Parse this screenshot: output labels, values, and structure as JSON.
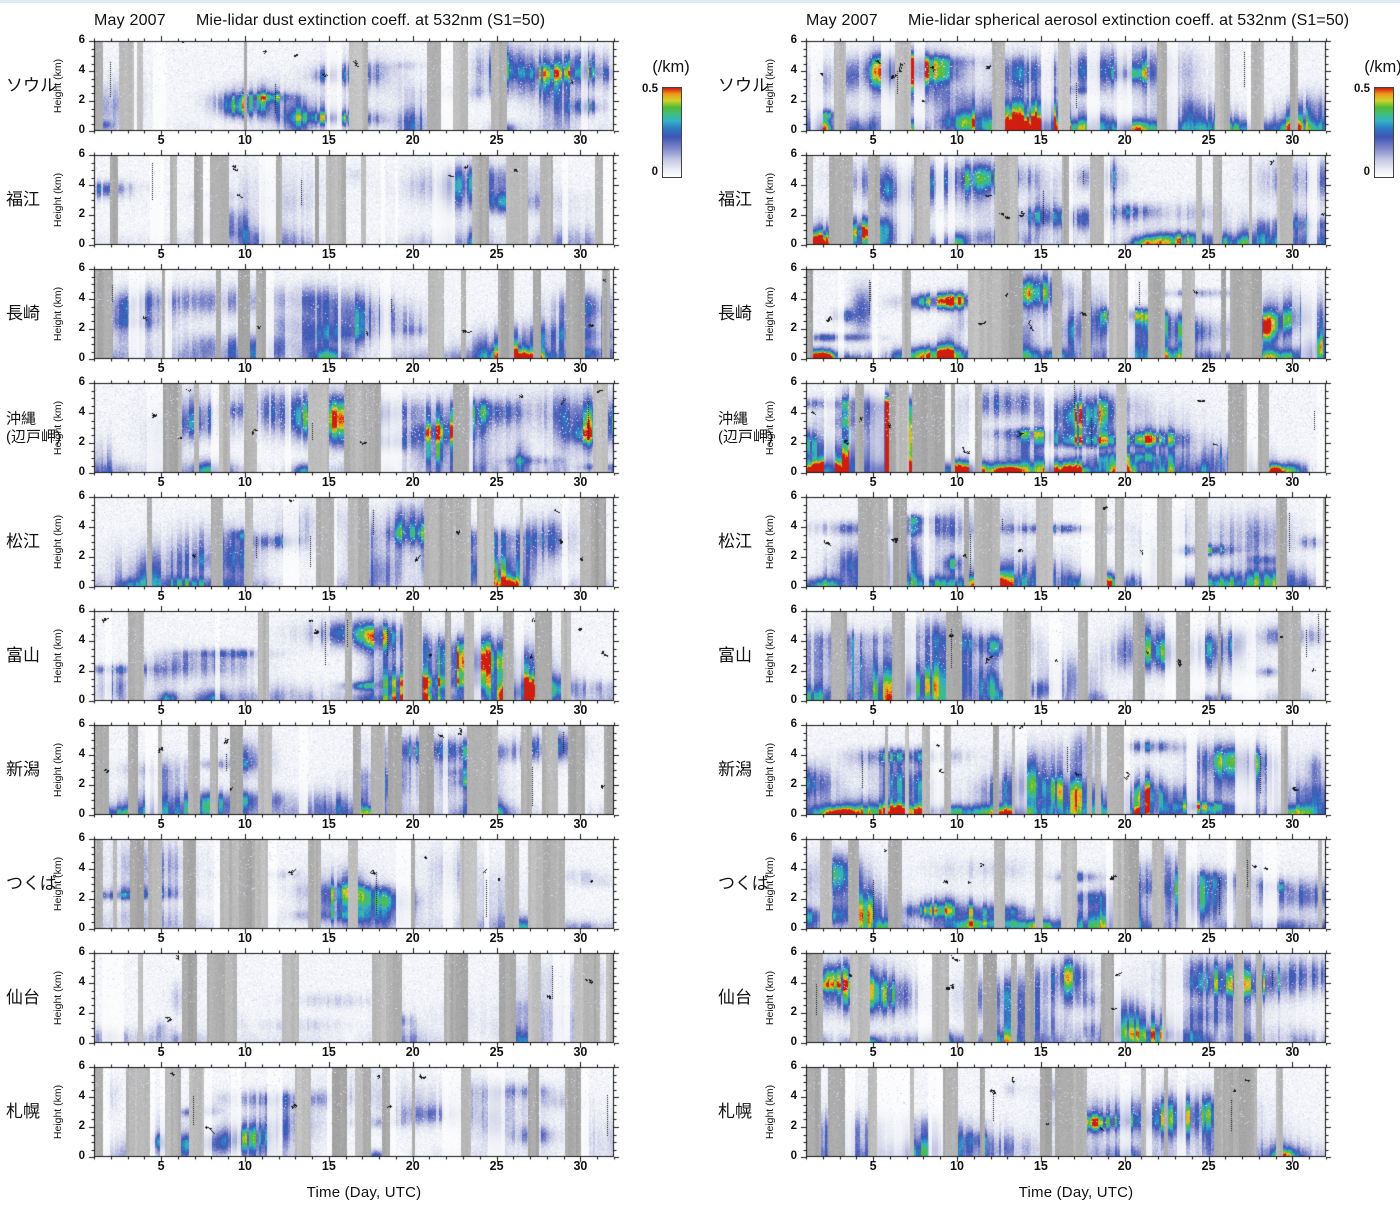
{
  "chart_data": {
    "type": "heatmap",
    "layout": {
      "columns": 2,
      "rows_per_column": 10,
      "colorbar_position": "right-of-first-row"
    },
    "axes": {
      "x": {
        "label": "Time (Day, UTC)",
        "range": [
          1,
          32
        ],
        "ticks": [
          5,
          10,
          15,
          20,
          25,
          30
        ],
        "minor_step": 1,
        "grid": false
      },
      "y": {
        "label": "Height (km)",
        "range": [
          0,
          6
        ],
        "ticks": [
          6,
          4,
          2,
          0
        ],
        "minor_step": 0.5,
        "grid": false
      }
    },
    "colorbar": {
      "label": "(/km)",
      "max_label": "0.5",
      "min_label": "0",
      "min": 0,
      "max": 0.5
    },
    "colors": {
      "text": "#111111",
      "axis": "#111111",
      "nodata_gray": "#b2b2b2",
      "speckle": "#d6d9ec",
      "cloud_black": "#16161a",
      "colormap": [
        {
          "p": 0.0,
          "c": "#ffffff"
        },
        {
          "p": 0.08,
          "c": "#eceef5"
        },
        {
          "p": 0.2,
          "c": "#c2c6e2"
        },
        {
          "p": 0.33,
          "c": "#7b84c8"
        },
        {
          "p": 0.45,
          "c": "#3f55b4"
        },
        {
          "p": 0.55,
          "c": "#2f7cc4"
        },
        {
          "p": 0.63,
          "c": "#35b2c8"
        },
        {
          "p": 0.71,
          "c": "#3fbf7a"
        },
        {
          "p": 0.78,
          "c": "#52b836"
        },
        {
          "p": 0.86,
          "c": "#cfd32a"
        },
        {
          "p": 0.93,
          "c": "#f09a1a"
        },
        {
          "p": 1.0,
          "c": "#cf1d10"
        }
      ]
    },
    "stations": [
      {
        "lines": [
          "ソウル"
        ]
      },
      {
        "lines": [
          "福江"
        ]
      },
      {
        "lines": [
          "長崎"
        ]
      },
      {
        "lines": [
          "沖縄",
          "(辺戸岬)"
        ]
      },
      {
        "lines": [
          "松江"
        ]
      },
      {
        "lines": [
          "富山"
        ]
      },
      {
        "lines": [
          "新潟"
        ]
      },
      {
        "lines": [
          "つくば"
        ]
      },
      {
        "lines": [
          "仙台"
        ]
      },
      {
        "lines": [
          "札幌"
        ]
      }
    ],
    "charts": [
      {
        "month": "May 2007",
        "title": "Mie-lidar dust extinction coeff. at 532nm (S1=50)",
        "x_label": "Time (Day, UTC)",
        "panels": [
          {
            "seed": 11,
            "gray": 0.3,
            "amp": 0.55,
            "blobs": 26,
            "surf": 0.12,
            "speckle": 0.55,
            "cloud": 0.5,
            "hot": [
              [
                25.5,
                0.35
              ]
            ]
          },
          {
            "seed": 12,
            "gray": 0.34,
            "amp": 0.42,
            "blobs": 20,
            "surf": 0.1,
            "speckle": 0.35,
            "cloud": 0.45,
            "hot": []
          },
          {
            "seed": 13,
            "gray": 0.24,
            "amp": 0.55,
            "blobs": 24,
            "surf": 0.22,
            "speckle": 0.45,
            "cloud": 0.5,
            "hot": [
              [
                15,
                0.5
              ],
              [
                25.8,
                0.85
              ],
              [
                27,
                0.6
              ]
            ]
          },
          {
            "seed": 14,
            "gray": 0.26,
            "amp": 0.6,
            "blobs": 26,
            "surf": 0.28,
            "speckle": 0.95,
            "cloud": 0.7,
            "hot": [
              [
                8,
                0.45
              ],
              [
                13.5,
                0.6
              ],
              [
                16.5,
                0.6
              ]
            ]
          },
          {
            "seed": 15,
            "gray": 0.26,
            "amp": 0.6,
            "blobs": 26,
            "surf": 0.2,
            "speckle": 0.7,
            "cloud": 0.6,
            "hot": [
              [
                25.7,
                0.9
              ],
              [
                3,
                0.35
              ]
            ]
          },
          {
            "seed": 16,
            "gray": 0.26,
            "amp": 0.68,
            "blobs": 28,
            "surf": 0.2,
            "speckle": 0.5,
            "cloud": 0.75,
            "hot": [
              [
                25.5,
                0.65
              ],
              [
                8,
                0.4
              ]
            ]
          },
          {
            "seed": 17,
            "gray": 0.3,
            "amp": 0.55,
            "blobs": 24,
            "surf": 0.18,
            "speckle": 0.5,
            "cloud": 0.6,
            "hot": [
              [
                17.5,
                0.55
              ],
              [
                24.6,
                0.5
              ]
            ]
          },
          {
            "seed": 18,
            "gray": 0.3,
            "amp": 0.46,
            "blobs": 22,
            "surf": 0.12,
            "speckle": 0.45,
            "cloud": 0.5,
            "hot": [
              [
                26.5,
                0.4
              ]
            ]
          },
          {
            "seed": 19,
            "gray": 0.28,
            "amp": 0.32,
            "blobs": 16,
            "surf": 0.08,
            "speckle": 0.35,
            "cloud": 0.35,
            "hot": [
              [
                26.5,
                0.4
              ]
            ]
          },
          {
            "seed": 20,
            "gray": 0.3,
            "amp": 0.46,
            "blobs": 24,
            "surf": 0.1,
            "speckle": 0.5,
            "cloud": 0.5,
            "hot": [
              [
                17.8,
                0.45
              ]
            ]
          }
        ]
      },
      {
        "month": "May 2007",
        "title": "Mie-lidar spherical aerosol extinction coeff. at 532nm (S1=50)",
        "x_label": "Time (Day, UTC)",
        "panels": [
          {
            "seed": 31,
            "gray": 0.24,
            "amp": 0.68,
            "blobs": 30,
            "surf": 0.5,
            "speckle": 0.6,
            "cloud": 0.6,
            "hot": [
              [
                2,
                0.7
              ],
              [
                7,
                0.6
              ],
              [
                13,
                0.55
              ],
              [
                20.5,
                0.5
              ],
              [
                30,
                0.55
              ]
            ]
          },
          {
            "seed": 32,
            "gray": 0.22,
            "amp": 0.62,
            "blobs": 28,
            "surf": 0.48,
            "speckle": 0.5,
            "cloud": 0.55,
            "hot": [
              [
                1.6,
                0.8
              ],
              [
                10,
                0.5
              ],
              [
                21,
                0.45
              ]
            ]
          },
          {
            "seed": 33,
            "gray": 0.2,
            "amp": 0.66,
            "blobs": 30,
            "surf": 0.55,
            "speckle": 0.5,
            "cloud": 0.6,
            "hot": [
              [
                1.6,
                0.9
              ],
              [
                12,
                0.5
              ],
              [
                22,
                0.5
              ]
            ]
          },
          {
            "seed": 34,
            "gray": 0.18,
            "amp": 0.66,
            "blobs": 30,
            "surf": 0.8,
            "speckle": 0.95,
            "cloud": 0.7,
            "hot": [
              [
                2,
                0.95
              ],
              [
                9,
                0.8
              ],
              [
                13,
                0.85
              ],
              [
                17,
                0.8
              ],
              [
                20,
                0.7
              ],
              [
                29,
                0.85
              ]
            ]
          },
          {
            "seed": 35,
            "gray": 0.26,
            "amp": 0.6,
            "blobs": 28,
            "surf": 0.42,
            "speckle": 0.6,
            "cloud": 0.6,
            "hot": [
              [
                2,
                0.55
              ],
              [
                19,
                0.5
              ]
            ]
          },
          {
            "seed": 36,
            "gray": 0.28,
            "amp": 0.58,
            "blobs": 26,
            "surf": 0.38,
            "speckle": 0.5,
            "cloud": 0.6,
            "hot": [
              [
                6,
                0.5
              ],
              [
                13,
                0.45
              ]
            ]
          },
          {
            "seed": 37,
            "gray": 0.24,
            "amp": 0.62,
            "blobs": 28,
            "surf": 0.5,
            "speckle": 0.55,
            "cloud": 0.6,
            "hot": [
              [
                3,
                0.6
              ],
              [
                6.5,
                0.6
              ],
              [
                13,
                0.5
              ],
              [
                30,
                0.5
              ]
            ]
          },
          {
            "seed": 38,
            "gray": 0.25,
            "amp": 0.6,
            "blobs": 26,
            "surf": 0.42,
            "speckle": 0.5,
            "cloud": 0.6,
            "hot": [
              [
                6,
                0.5
              ],
              [
                11,
                0.5
              ],
              [
                15,
                0.45
              ]
            ]
          },
          {
            "seed": 39,
            "gray": 0.25,
            "amp": 0.58,
            "blobs": 26,
            "surf": 0.35,
            "speckle": 0.5,
            "cloud": 0.55,
            "hot": [
              [
                4.5,
                0.55
              ],
              [
                9,
                0.5
              ]
            ]
          },
          {
            "seed": 40,
            "gray": 0.3,
            "amp": 0.5,
            "blobs": 24,
            "surf": 0.22,
            "speckle": 0.5,
            "cloud": 0.5,
            "hot": [
              [
                29.5,
                0.5
              ]
            ]
          }
        ]
      }
    ]
  }
}
